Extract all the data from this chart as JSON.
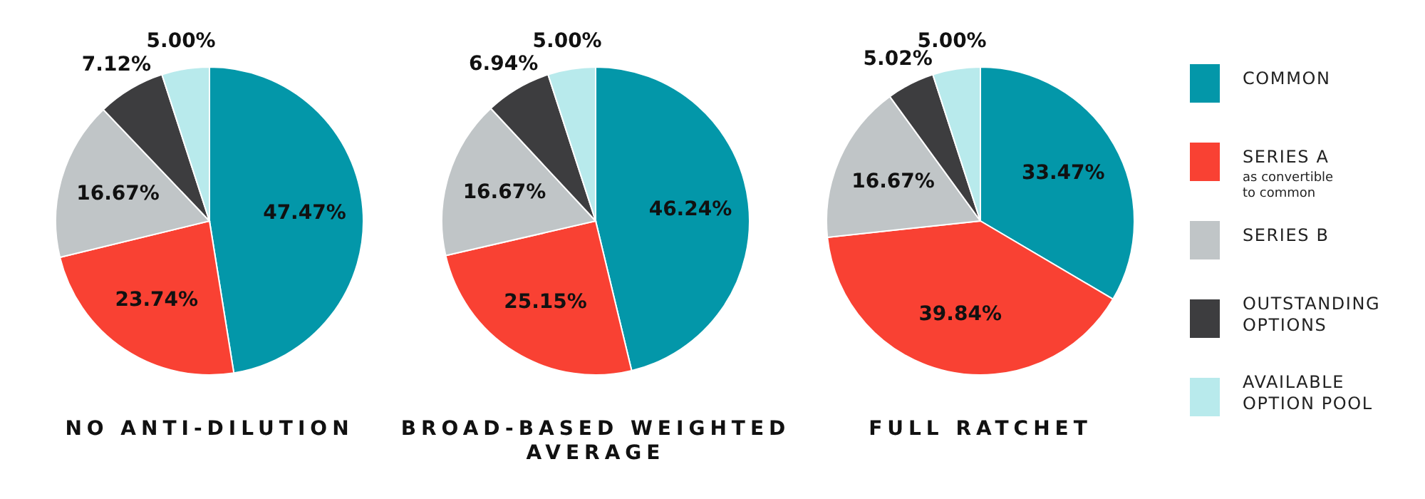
{
  "chart_data": [
    {
      "type": "pie",
      "title": "NO ANTI-DILUTION",
      "categories": [
        null,
        null,
        null,
        null,
        null
      ],
      "values": [
        47.47,
        23.74,
        16.67,
        7.12,
        5.0
      ],
      "colors": [
        "#0397a9",
        "#f94133",
        "#c0c5c7",
        "#3d3d3f",
        "#b8eaec"
      ],
      "value_labels": [
        "47.47%",
        "23.74%",
        "16.67%",
        "7.12%",
        "5.00%"
      ],
      "legend": false
    },
    {
      "type": "pie",
      "title": "BROAD-BASED WEIGHTED AVERAGE",
      "categories": [
        null,
        null,
        null,
        null,
        null
      ],
      "values": [
        46.24,
        25.15,
        16.67,
        6.94,
        5.0
      ],
      "colors": [
        "#0397a9",
        "#f94133",
        "#c0c5c7",
        "#3d3d3f",
        "#b8eaec"
      ],
      "value_labels": [
        "46.24%",
        "25.15%",
        "16.67%",
        "6.94%",
        "5.00%"
      ],
      "legend": false
    },
    {
      "type": "pie",
      "title": "FULL RATCHET",
      "categories": [
        "COMMON",
        "SERIES A",
        "SERIES B",
        "OUTSTANDING OPTIONS",
        "AVAILABLE OPTION POOL"
      ],
      "values": [
        33.47,
        39.84,
        16.67,
        5.02,
        5.0
      ],
      "colors": [
        "#0397a9",
        "#f94133",
        "#c0c5c7",
        "#3d3d3f",
        "#b8eaec"
      ],
      "value_labels": [
        "33.47%",
        "39.84%",
        "16.67%",
        "5.02%",
        "5.00%"
      ],
      "legend": "right",
      "annotations": [
        "as convertible to common"
      ]
    }
  ]
}
